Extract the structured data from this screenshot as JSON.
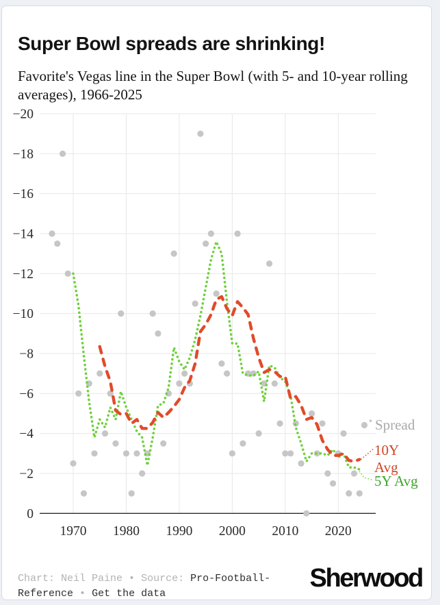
{
  "header": {
    "title": "Super Bowl spreads are shrinking!",
    "subtitle": "Favorite's Vegas line in the Super Bowl (with 5- and 10-year rolling averages), 1966-2025"
  },
  "legend": {
    "spread_label": "Spread",
    "ten_year_label": "10Y Avg",
    "five_year_label": "5Y Avg"
  },
  "footer": {
    "credit": "Chart: Neil Paine",
    "separator": "•",
    "source_label": "Source:",
    "source_name": "Pro-Football-Reference",
    "link_label": "Get the data",
    "brand": "Sherwood"
  },
  "colors": {
    "spread_point": "#c6c6c6",
    "five_year_line": "#6fd03c",
    "ten_year_line": "#e04b2a",
    "spread_label": "#a9a9a9",
    "ten_year_label": "#cf4526",
    "five_year_label": "#3da32a",
    "gridline": "#e7e7e7",
    "axis": "#2b2b2b",
    "tick_text": "#2b2b2b"
  },
  "chart_data": {
    "type": "scatter",
    "title": "Super Bowl spreads are shrinking!",
    "xlabel": "",
    "ylabel": "",
    "x": [
      1966,
      1967,
      1968,
      1969,
      1970,
      1971,
      1972,
      1973,
      1974,
      1975,
      1976,
      1977,
      1978,
      1979,
      1980,
      1981,
      1982,
      1983,
      1984,
      1985,
      1986,
      1987,
      1988,
      1989,
      1990,
      1991,
      1992,
      1993,
      1994,
      1995,
      1996,
      1997,
      1998,
      1999,
      2000,
      2001,
      2002,
      2003,
      2004,
      2005,
      2006,
      2007,
      2008,
      2009,
      2010,
      2011,
      2012,
      2013,
      2014,
      2015,
      2016,
      2017,
      2018,
      2019,
      2020,
      2021,
      2022,
      2023,
      2024
    ],
    "series": [
      {
        "name": "Spread",
        "type": "scatter",
        "values": [
          -14,
          -13.5,
          -18,
          -12,
          -2.5,
          -6,
          -1,
          -6.5,
          -3,
          -7,
          -4,
          -6,
          -3.5,
          -10,
          -3,
          -1,
          -3,
          -2,
          -3,
          -10,
          -9,
          -3.5,
          -6,
          -13,
          -6.5,
          -7,
          -6.5,
          -10.5,
          -19,
          -13.5,
          -14,
          -11,
          -7.5,
          -7,
          -3,
          -14,
          -3.5,
          -7,
          -7,
          -4,
          -6.5,
          -12.5,
          -6.5,
          -4.5,
          -3,
          -3,
          -4.5,
          -2.5,
          0,
          -5,
          -3,
          -4.5,
          -2,
          -1.5,
          -3,
          -4,
          -1,
          -2,
          -1
        ]
      },
      {
        "name": "5Y Avg",
        "type": "line",
        "style": "dotted",
        "derived": "trailing_mean_window_5_of_Spread",
        "start_year": 1970
      },
      {
        "name": "10Y Avg",
        "type": "line",
        "style": "dashed",
        "derived": "trailing_mean_window_10_of_Spread",
        "start_year": 1975
      }
    ],
    "yticks": [
      0,
      -2,
      -4,
      -6,
      -8,
      -10,
      -12,
      -14,
      -16,
      -18,
      -20
    ],
    "xticks": [
      1970,
      1980,
      1990,
      2000,
      2010,
      2020
    ],
    "ylim": [
      0,
      -20
    ],
    "xlim": [
      1963.7,
      2027
    ],
    "grid": true,
    "legend_position": "right-outside"
  }
}
